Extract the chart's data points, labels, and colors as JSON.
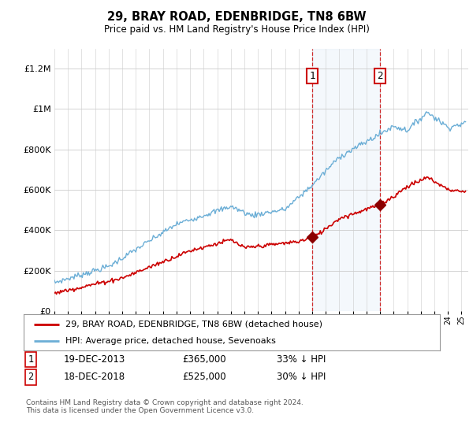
{
  "title": "29, BRAY ROAD, EDENBRIDGE, TN8 6BW",
  "subtitle": "Price paid vs. HM Land Registry's House Price Index (HPI)",
  "ytick_values": [
    0,
    200000,
    400000,
    600000,
    800000,
    1000000,
    1200000
  ],
  "ylim": [
    0,
    1300000
  ],
  "xlim_start": 1995.0,
  "xlim_end": 2025.5,
  "hpi_color": "#6baed6",
  "hpi_fill_color": "#c6dbef",
  "price_color": "#cc0000",
  "marker_color": "#8b0000",
  "sale1_year": 2014.0,
  "sale1_price": 365000,
  "sale2_year": 2019.0,
  "sale2_price": 525000,
  "shade_start": 2014.0,
  "shade_end": 2019.0,
  "legend_property_label": "29, BRAY ROAD, EDENBRIDGE, TN8 6BW (detached house)",
  "legend_hpi_label": "HPI: Average price, detached house, Sevenoaks",
  "note1_label": "1",
  "note1_date": "19-DEC-2013",
  "note1_price": "£365,000",
  "note1_pct": "33% ↓ HPI",
  "note2_label": "2",
  "note2_date": "18-DEC-2018",
  "note2_price": "£525,000",
  "note2_pct": "30% ↓ HPI",
  "footer": "Contains HM Land Registry data © Crown copyright and database right 2024.\nThis data is licensed under the Open Government Licence v3.0.",
  "background_color": "#ffffff",
  "grid_color": "#cccccc"
}
